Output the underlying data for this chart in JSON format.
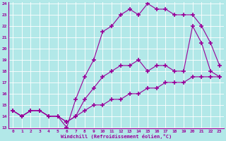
{
  "line1_x": [
    0,
    1,
    2,
    3,
    4,
    5,
    6,
    7,
    8,
    9,
    10,
    11,
    12,
    13,
    14,
    15,
    16,
    17,
    18,
    19,
    20,
    21,
    22,
    23
  ],
  "line1_y": [
    14.5,
    14.0,
    14.5,
    14.5,
    14.0,
    14.0,
    13.0,
    15.5,
    17.5,
    19.0,
    21.5,
    22.0,
    23.0,
    23.5,
    23.0,
    24.0,
    23.5,
    23.5,
    23.0,
    23.0,
    23.0,
    22.0,
    20.5,
    18.5
  ],
  "line2_x": [
    0,
    1,
    2,
    3,
    4,
    5,
    6,
    7,
    8,
    9,
    10,
    11,
    12,
    13,
    14,
    15,
    16,
    17,
    18,
    19,
    20,
    21,
    22,
    23
  ],
  "line2_y": [
    14.5,
    14.0,
    14.5,
    14.5,
    14.0,
    14.0,
    13.5,
    14.0,
    15.5,
    16.5,
    17.5,
    18.0,
    18.5,
    18.5,
    19.0,
    18.0,
    18.5,
    18.5,
    18.0,
    18.0,
    22.0,
    20.5,
    18.0,
    17.5
  ],
  "line3_x": [
    0,
    1,
    2,
    3,
    4,
    5,
    6,
    7,
    8,
    9,
    10,
    11,
    12,
    13,
    14,
    15,
    16,
    17,
    18,
    19,
    20,
    21,
    22,
    23
  ],
  "line3_y": [
    14.5,
    14.0,
    14.5,
    14.5,
    14.0,
    14.0,
    13.5,
    14.0,
    14.5,
    15.0,
    15.0,
    15.5,
    15.5,
    16.0,
    16.0,
    16.5,
    16.5,
    17.0,
    17.0,
    17.0,
    17.5,
    17.5,
    17.5,
    17.5
  ],
  "line_color": "#990099",
  "bg_color": "#b2e8e8",
  "grid_color": "#cceeee",
  "xlabel": "Windchill (Refroidissement éolien,°C)",
  "ylim": [
    13,
    24
  ],
  "xlim": [
    -0.5,
    23.5
  ],
  "yticks": [
    13,
    14,
    15,
    16,
    17,
    18,
    19,
    20,
    21,
    22,
    23,
    24
  ],
  "xticks": [
    0,
    1,
    2,
    3,
    4,
    5,
    6,
    7,
    8,
    9,
    10,
    11,
    12,
    13,
    14,
    15,
    16,
    17,
    18,
    19,
    20,
    21,
    22,
    23
  ]
}
